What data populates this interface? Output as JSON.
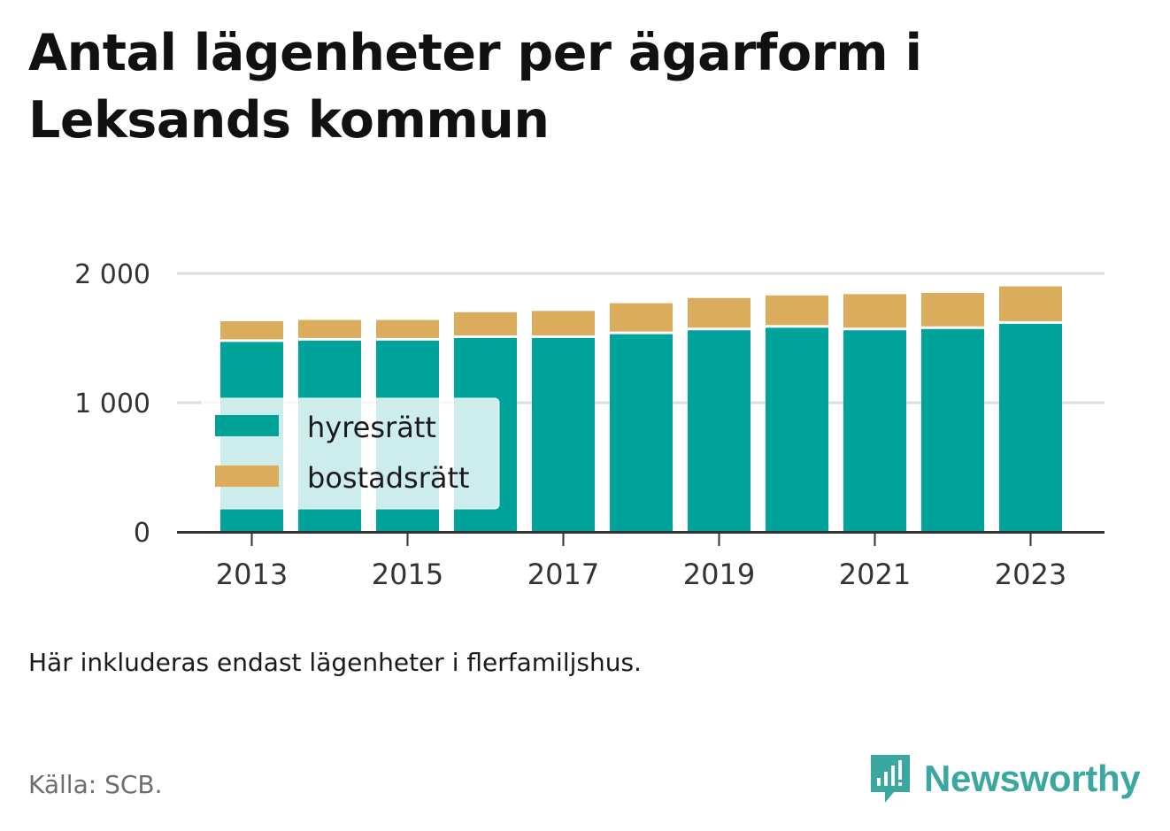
{
  "title": "Antal lägenheter per ägarform i Leksands kommun",
  "note": "Här inkluderas endast lägenheter i flerfamiljshus.",
  "source": "Källa: SCB.",
  "logo_text": "Newsworthy",
  "colors": {
    "hyresratt": "#00a39a",
    "bostadsratt": "#dbac5c",
    "grid": "#dddddd",
    "axis": "#333333"
  },
  "chart_data": {
    "type": "bar",
    "stacked": true,
    "categories": [
      "2013",
      "2014",
      "2015",
      "2016",
      "2017",
      "2018",
      "2019",
      "2020",
      "2021",
      "2022",
      "2023"
    ],
    "x_tick_labels": [
      "2013",
      "2015",
      "2017",
      "2019",
      "2021",
      "2023"
    ],
    "y_tick_labels": [
      "0",
      "1 000",
      "2 000"
    ],
    "y_ticks": [
      0,
      1000,
      2000
    ],
    "ylim": [
      0,
      2000
    ],
    "grid": true,
    "legend_position": "bottom-left",
    "series": [
      {
        "name": "hyresrätt",
        "values": [
          1470,
          1480,
          1480,
          1500,
          1500,
          1530,
          1560,
          1580,
          1560,
          1570,
          1610
        ]
      },
      {
        "name": "bostadsrätt",
        "values": [
          160,
          160,
          160,
          200,
          210,
          240,
          250,
          250,
          280,
          280,
          290
        ]
      }
    ]
  }
}
